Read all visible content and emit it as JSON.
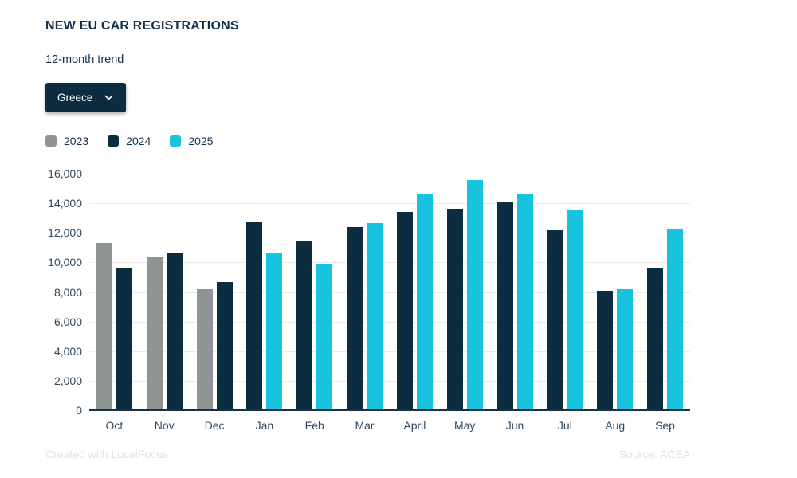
{
  "header": {
    "title": "NEW EU CAR REGISTRATIONS",
    "subtitle": "12-month trend"
  },
  "dropdown": {
    "selected": "Greece"
  },
  "footer": {
    "credit": "Created with LocalFocus",
    "source": "Source: ACEA"
  },
  "colors": {
    "title_text": "#13304a",
    "axis_text": "#2e4a63",
    "gridline": "#ececec",
    "baseline": "#16324a",
    "dropdown_bg": "#0c2d3f",
    "footer_text": "#e2e2e2"
  },
  "chart_data": {
    "type": "bar",
    "title": "NEW EU CAR REGISTRATIONS",
    "subtitle": "12-month trend",
    "country": "Greece",
    "xlabel": "",
    "ylabel": "",
    "categories": [
      "Oct",
      "Nov",
      "Dec",
      "Jan",
      "Feb",
      "Mar",
      "April",
      "May",
      "Jun",
      "Jul",
      "Aug",
      "Sep"
    ],
    "series": [
      {
        "name": "2023",
        "color": "#8f9494",
        "values": [
          11300,
          10400,
          8200,
          null,
          null,
          null,
          null,
          null,
          null,
          null,
          null,
          null
        ]
      },
      {
        "name": "2024",
        "color": "#0c2d3f",
        "values": [
          9650,
          10650,
          8650,
          12700,
          11400,
          12400,
          13400,
          13650,
          14100,
          12150,
          8100,
          9650
        ]
      },
      {
        "name": "2025",
        "color": "#18c4dd",
        "values": [
          null,
          null,
          null,
          10650,
          9900,
          12650,
          14600,
          15550,
          14600,
          13550,
          8200,
          12250
        ]
      }
    ],
    "ylim": [
      0,
      16000
    ],
    "ytick_step": 2000,
    "yticks": [
      "16,000",
      "14,000",
      "12,000",
      "10,000",
      "8,000",
      "6,000",
      "4,000",
      "2,000",
      "0"
    ],
    "grid": true,
    "legend_position": "top-left",
    "source": "ACEA"
  }
}
